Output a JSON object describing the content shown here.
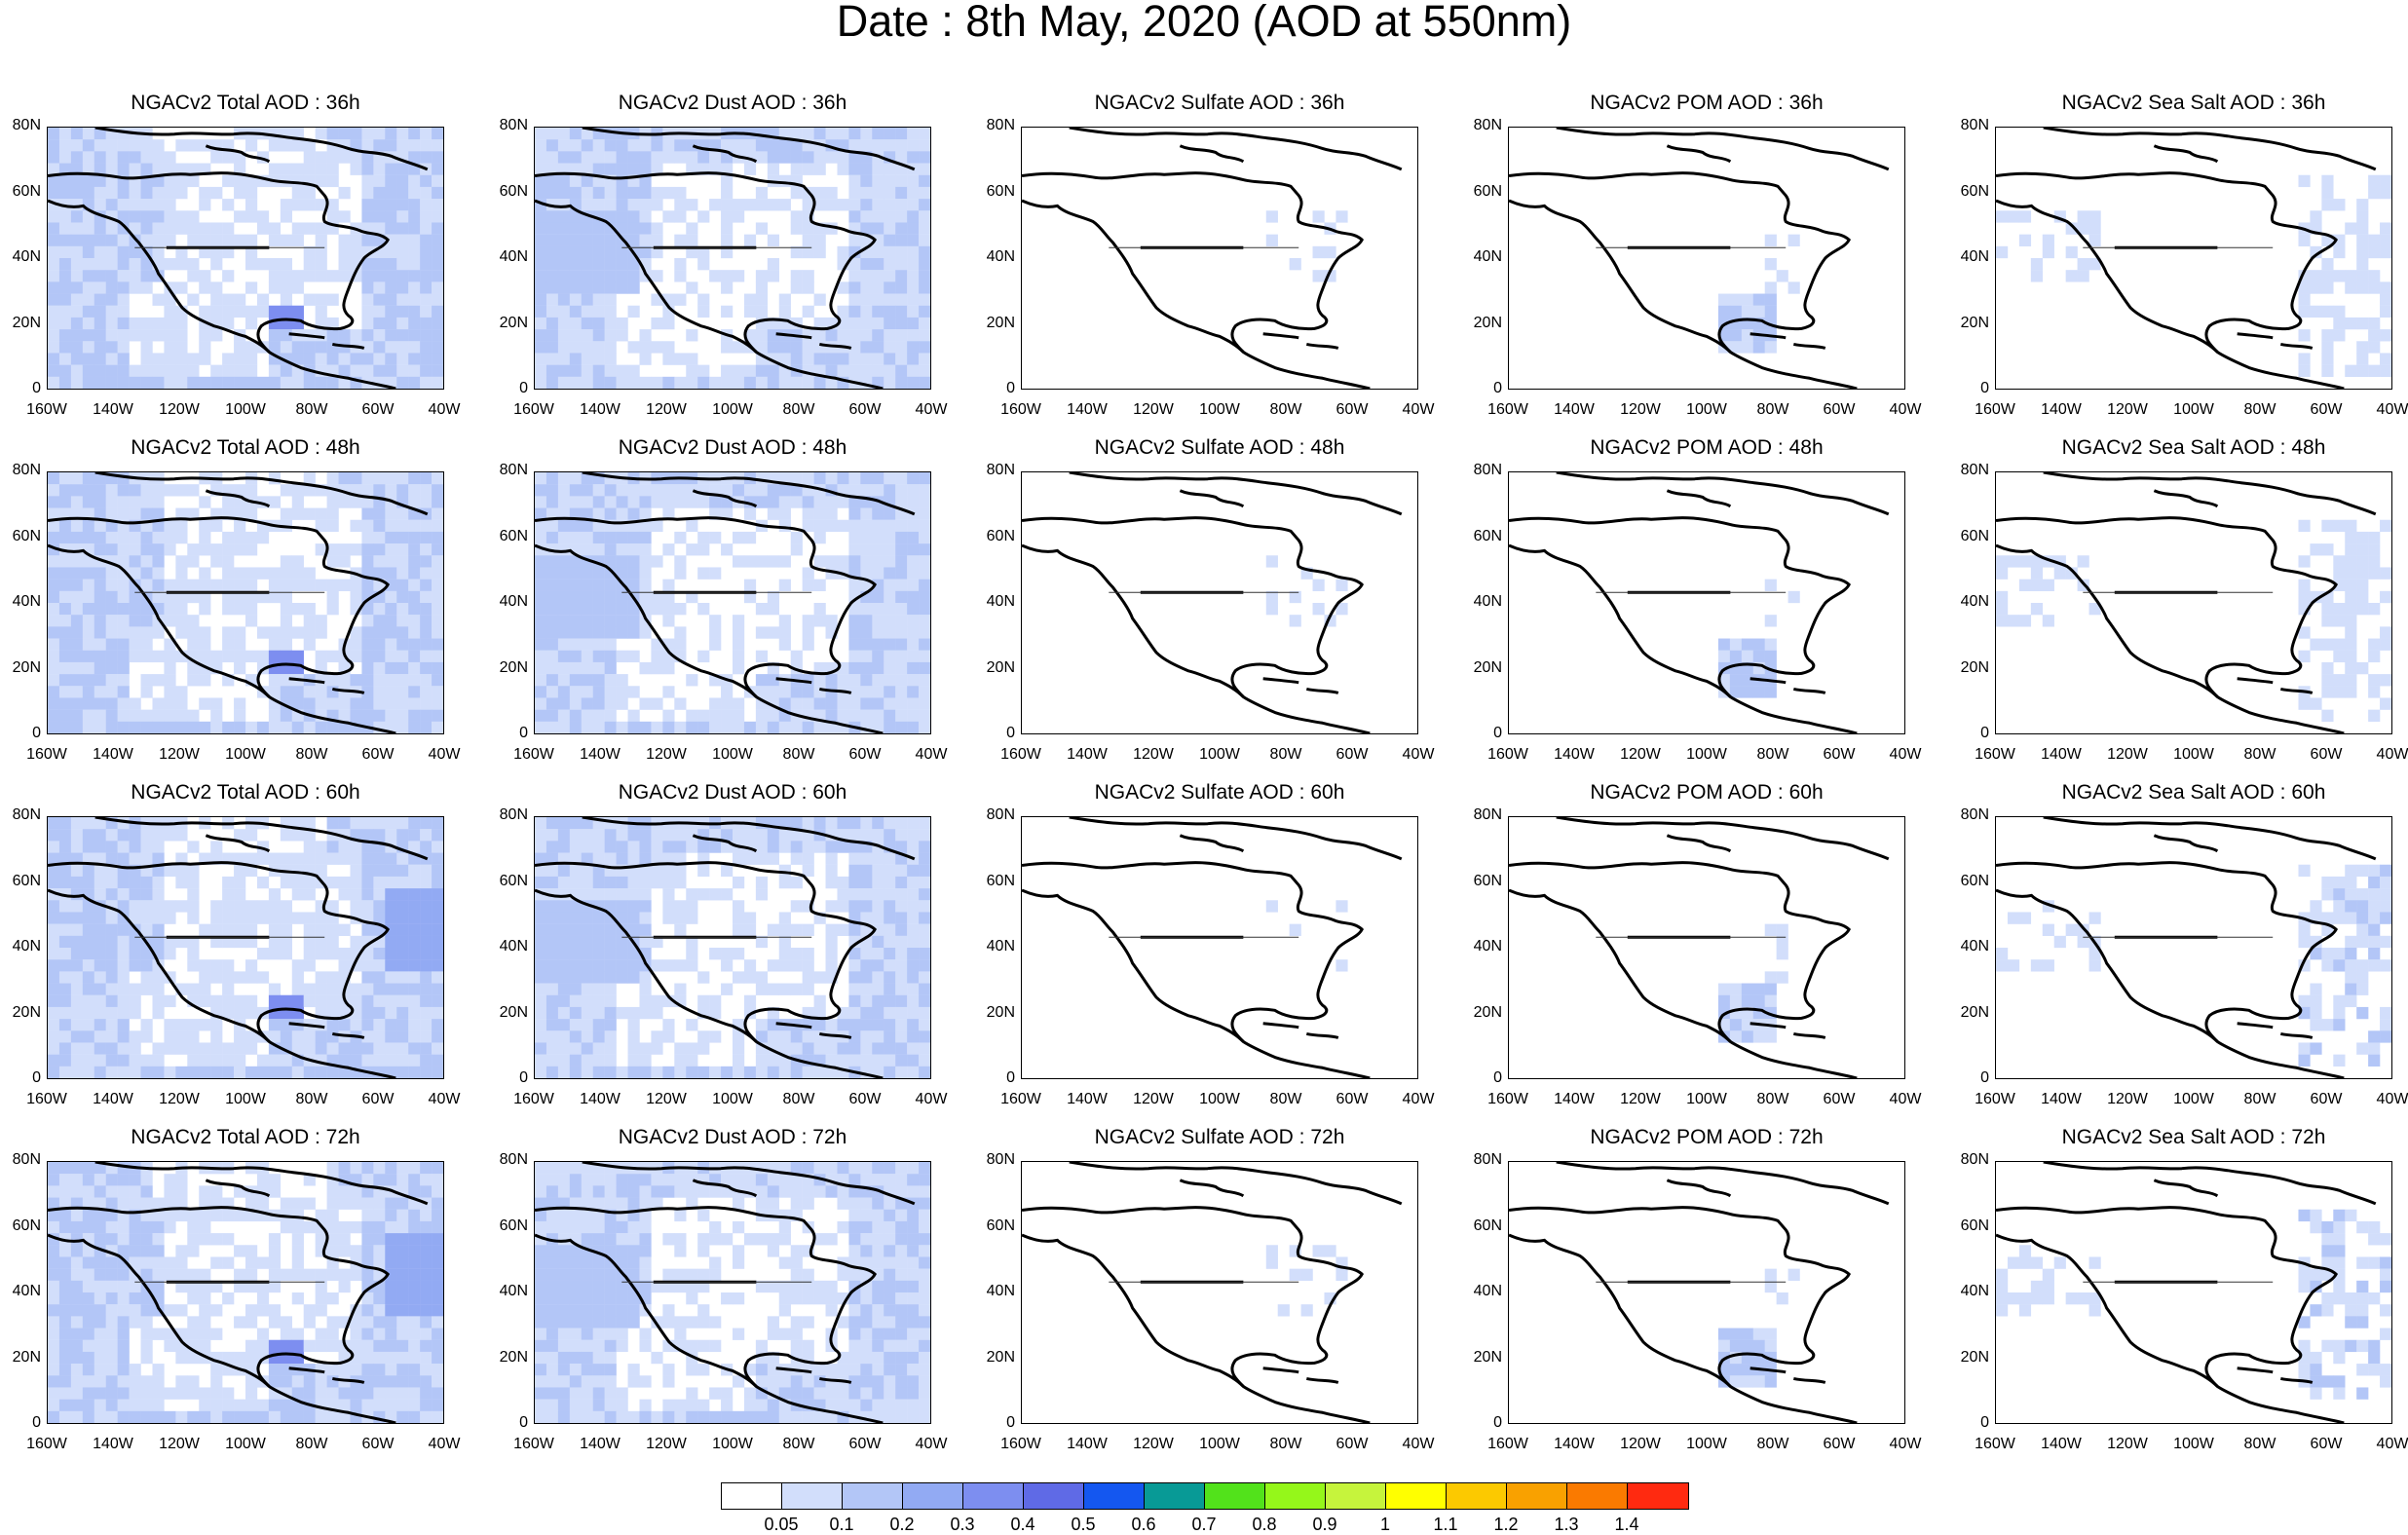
{
  "title": "Date : 8th May, 2020 (AOD at 550nm)",
  "y_ticks": [
    "80N",
    "60N",
    "40N",
    "20N",
    "0"
  ],
  "x_ticks": [
    "160W",
    "140W",
    "120W",
    "100W",
    "80W",
    "60W",
    "40W"
  ],
  "panels": [
    [
      "NGACv2 Total AOD : 36h",
      "NGACv2 Dust AOD : 36h",
      "NGACv2 Sulfate AOD : 36h",
      "NGACv2 POM AOD : 36h",
      "NGACv2 Sea Salt AOD : 36h"
    ],
    [
      "NGACv2 Total AOD : 48h",
      "NGACv2 Dust AOD : 48h",
      "NGACv2 Sulfate AOD : 48h",
      "NGACv2 POM AOD : 48h",
      "NGACv2 Sea Salt AOD : 48h"
    ],
    [
      "NGACv2 Total AOD : 60h",
      "NGACv2 Dust AOD : 60h",
      "NGACv2 Sulfate AOD : 60h",
      "NGACv2 POM AOD : 60h",
      "NGACv2 Sea Salt AOD : 60h"
    ],
    [
      "NGACv2 Total AOD : 72h",
      "NGACv2 Dust AOD : 72h",
      "NGACv2 Sulfate AOD : 72h",
      "NGACv2 POM AOD : 72h",
      "NGACv2 Sea Salt  AOD : 72h"
    ]
  ],
  "colorbar": {
    "colors": [
      "#ffffff",
      "#d2defb",
      "#b3c6f7",
      "#92aaf3",
      "#7d8ef0",
      "#5f6ae6",
      "#1457f0",
      "#089a96",
      "#52e21b",
      "#95f71a",
      "#c6f43c",
      "#ffff00",
      "#fcc900",
      "#f9a100",
      "#fa7a00",
      "#ff2a10"
    ],
    "labels": [
      "0.05",
      "0.1",
      "0.2",
      "0.3",
      "0.4",
      "0.5",
      "0.6",
      "0.7",
      "0.8",
      "0.9",
      "1",
      "1.1",
      "1.2",
      "1.3",
      "1.4"
    ]
  }
}
